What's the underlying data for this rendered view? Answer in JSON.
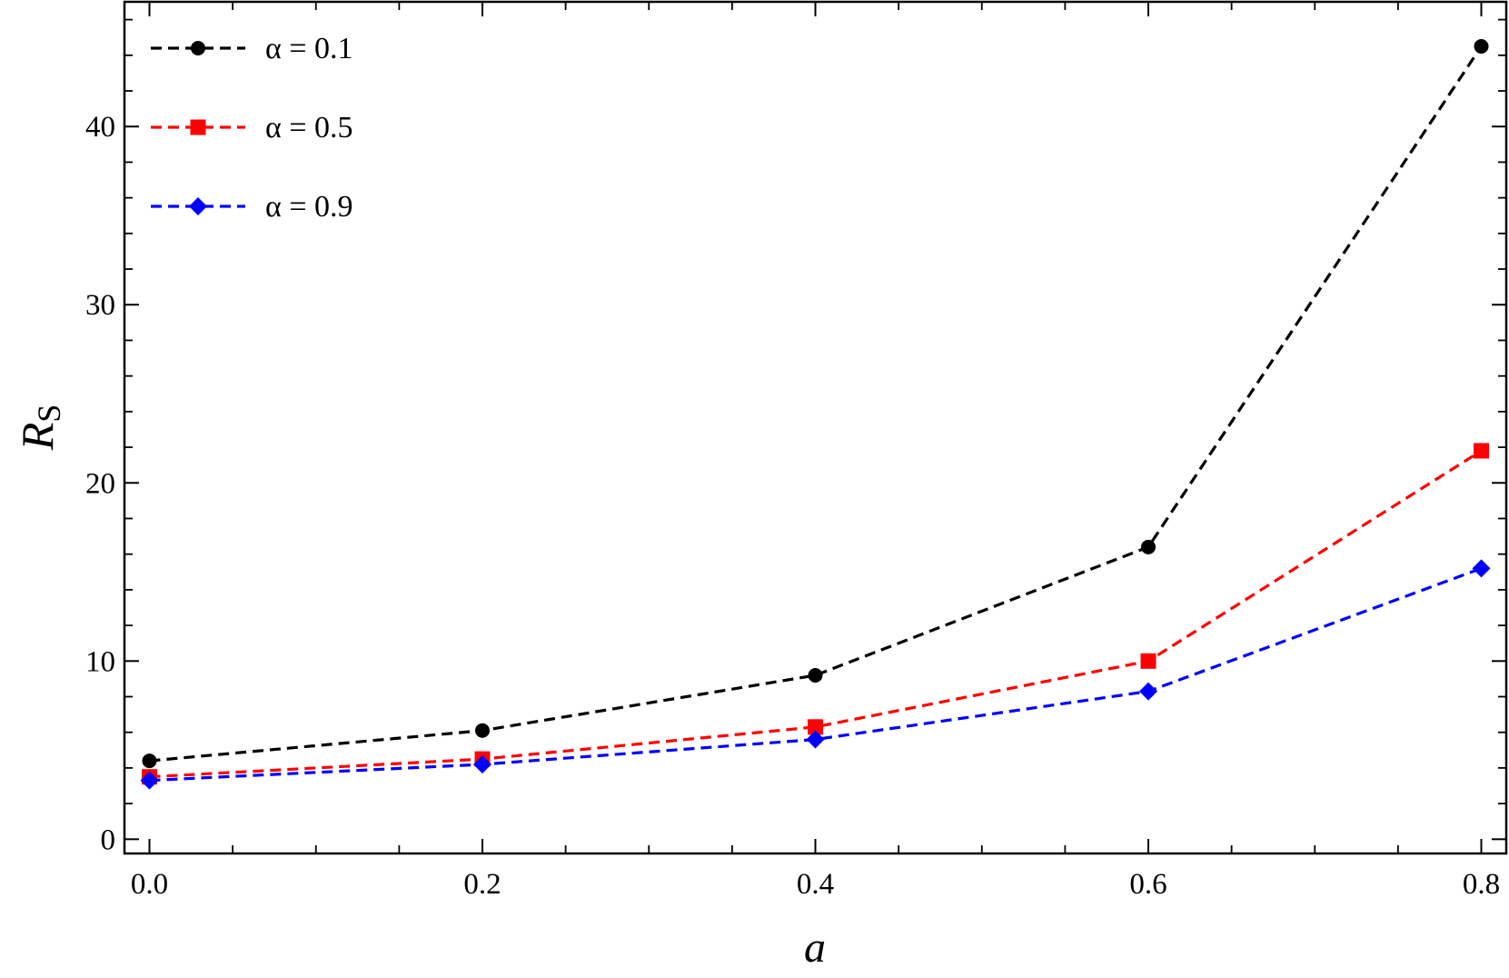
{
  "chart_data": {
    "type": "line",
    "x": [
      0.0,
      0.2,
      0.4,
      0.6,
      0.8
    ],
    "series": [
      {
        "name": "α = 0.1",
        "values": [
          4.4,
          6.1,
          9.2,
          16.4,
          44.5
        ],
        "color": "#000000",
        "marker": "circle"
      },
      {
        "name": "α = 0.5",
        "values": [
          3.5,
          4.5,
          6.3,
          10.0,
          21.8
        ],
        "color": "#ff0000",
        "marker": "square"
      },
      {
        "name": "α = 0.9",
        "values": [
          3.3,
          4.2,
          5.6,
          8.3,
          15.2
        ],
        "color": "#0000ff",
        "marker": "diamond"
      }
    ],
    "xlabel": "a",
    "ylabel": "RS",
    "xlim": [
      -0.015,
      0.815
    ],
    "ylim": [
      -0.8,
      47
    ],
    "xticks": [
      "0.0",
      "0.2",
      "0.4",
      "0.6",
      "0.8"
    ],
    "yticks": [
      "0",
      "10",
      "20",
      "30",
      "40"
    ],
    "legend_position": "top-left",
    "grid": false,
    "line_style": "dashed"
  }
}
